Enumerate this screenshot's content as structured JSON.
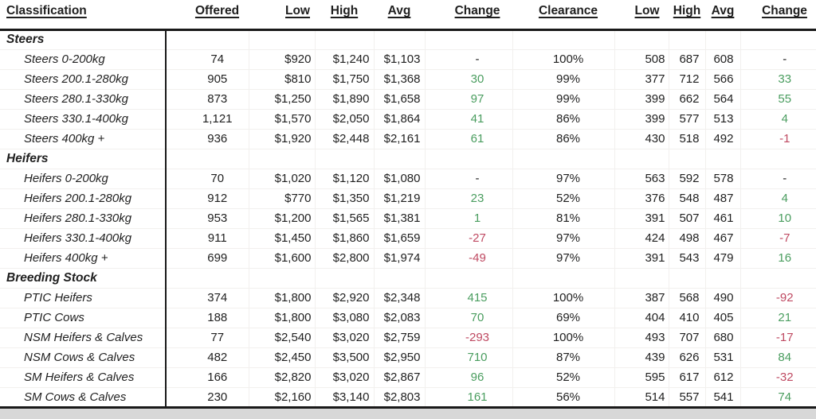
{
  "colors": {
    "positive": "#4a9d5f",
    "negative": "#bf4a62",
    "text": "#1f1f1f"
  },
  "header": {
    "classification": "Classification",
    "offered": "Offered",
    "low": "Low",
    "high": "High",
    "avg": "Avg",
    "change": "Change",
    "clearance": "Clearance",
    "low2": "Low",
    "high2": "High",
    "avg2": "Avg",
    "change2": "Change"
  },
  "chart_data": {
    "type": "table",
    "columns": [
      "Classification",
      "Offered",
      "Low",
      "High",
      "Avg",
      "Change",
      "Clearance",
      "Low",
      "High",
      "Avg",
      "Change"
    ],
    "groups": [
      {
        "label": "Steers",
        "rows": [
          {
            "label": "Steers 0-200kg",
            "offered": "74",
            "low": "$920",
            "high": "$1,240",
            "avg": "$1,103",
            "change": "-",
            "clearance": "100%",
            "low2": "508",
            "high2": "687",
            "avg2": "608",
            "change2": "-"
          },
          {
            "label": "Steers 200.1-280kg",
            "offered": "905",
            "low": "$810",
            "high": "$1,750",
            "avg": "$1,368",
            "change": "30",
            "clearance": "99%",
            "low2": "377",
            "high2": "712",
            "avg2": "566",
            "change2": "33"
          },
          {
            "label": "Steers 280.1-330kg",
            "offered": "873",
            "low": "$1,250",
            "high": "$1,890",
            "avg": "$1,658",
            "change": "97",
            "clearance": "99%",
            "low2": "399",
            "high2": "662",
            "avg2": "564",
            "change2": "55"
          },
          {
            "label": "Steers 330.1-400kg",
            "offered": "1,121",
            "low": "$1,570",
            "high": "$2,050",
            "avg": "$1,864",
            "change": "41",
            "clearance": "86%",
            "low2": "399",
            "high2": "577",
            "avg2": "513",
            "change2": "4"
          },
          {
            "label": "Steers 400kg +",
            "offered": "936",
            "low": "$1,920",
            "high": "$2,448",
            "avg": "$2,161",
            "change": "61",
            "clearance": "86%",
            "low2": "430",
            "high2": "518",
            "avg2": "492",
            "change2": "-1"
          }
        ]
      },
      {
        "label": "Heifers",
        "rows": [
          {
            "label": "Heifers 0-200kg",
            "offered": "70",
            "low": "$1,020",
            "high": "$1,120",
            "avg": "$1,080",
            "change": "-",
            "clearance": "97%",
            "low2": "563",
            "high2": "592",
            "avg2": "578",
            "change2": "-"
          },
          {
            "label": "Heifers 200.1-280kg",
            "offered": "912",
            "low": "$770",
            "high": "$1,350",
            "avg": "$1,219",
            "change": "23",
            "clearance": "52%",
            "low2": "376",
            "high2": "548",
            "avg2": "487",
            "change2": "4"
          },
          {
            "label": "Heifers 280.1-330kg",
            "offered": "953",
            "low": "$1,200",
            "high": "$1,565",
            "avg": "$1,381",
            "change": "1",
            "clearance": "81%",
            "low2": "391",
            "high2": "507",
            "avg2": "461",
            "change2": "10"
          },
          {
            "label": "Heifers 330.1-400kg",
            "offered": "911",
            "low": "$1,450",
            "high": "$1,860",
            "avg": "$1,659",
            "change": "-27",
            "clearance": "97%",
            "low2": "424",
            "high2": "498",
            "avg2": "467",
            "change2": "-7"
          },
          {
            "label": "Heifers 400kg +",
            "offered": "699",
            "low": "$1,600",
            "high": "$2,800",
            "avg": "$1,974",
            "change": "-49",
            "clearance": "97%",
            "low2": "391",
            "high2": "543",
            "avg2": "479",
            "change2": "16"
          }
        ]
      },
      {
        "label": "Breeding Stock",
        "rows": [
          {
            "label": "PTIC Heifers",
            "offered": "374",
            "low": "$1,800",
            "high": "$2,920",
            "avg": "$2,348",
            "change": "415",
            "clearance": "100%",
            "low2": "387",
            "high2": "568",
            "avg2": "490",
            "change2": "-92"
          },
          {
            "label": "PTIC Cows",
            "offered": "188",
            "low": "$1,800",
            "high": "$3,080",
            "avg": "$2,083",
            "change": "70",
            "clearance": "69%",
            "low2": "404",
            "high2": "410",
            "avg2": "405",
            "change2": "21"
          },
          {
            "label": "NSM Heifers & Calves",
            "offered": "77",
            "low": "$2,540",
            "high": "$3,020",
            "avg": "$2,759",
            "change": "-293",
            "clearance": "100%",
            "low2": "493",
            "high2": "707",
            "avg2": "680",
            "change2": "-17"
          },
          {
            "label": "NSM Cows & Calves",
            "offered": "482",
            "low": "$2,450",
            "high": "$3,500",
            "avg": "$2,950",
            "change": "710",
            "clearance": "87%",
            "low2": "439",
            "high2": "626",
            "avg2": "531",
            "change2": "84"
          },
          {
            "label": "SM Heifers & Calves",
            "offered": "166",
            "low": "$2,820",
            "high": "$3,020",
            "avg": "$2,867",
            "change": "96",
            "clearance": "52%",
            "low2": "595",
            "high2": "617",
            "avg2": "612",
            "change2": "-32"
          },
          {
            "label": "SM Cows & Calves",
            "offered": "230",
            "low": "$2,160",
            "high": "$3,140",
            "avg": "$2,803",
            "change": "161",
            "clearance": "56%",
            "low2": "514",
            "high2": "557",
            "avg2": "541",
            "change2": "74"
          }
        ]
      }
    ]
  }
}
